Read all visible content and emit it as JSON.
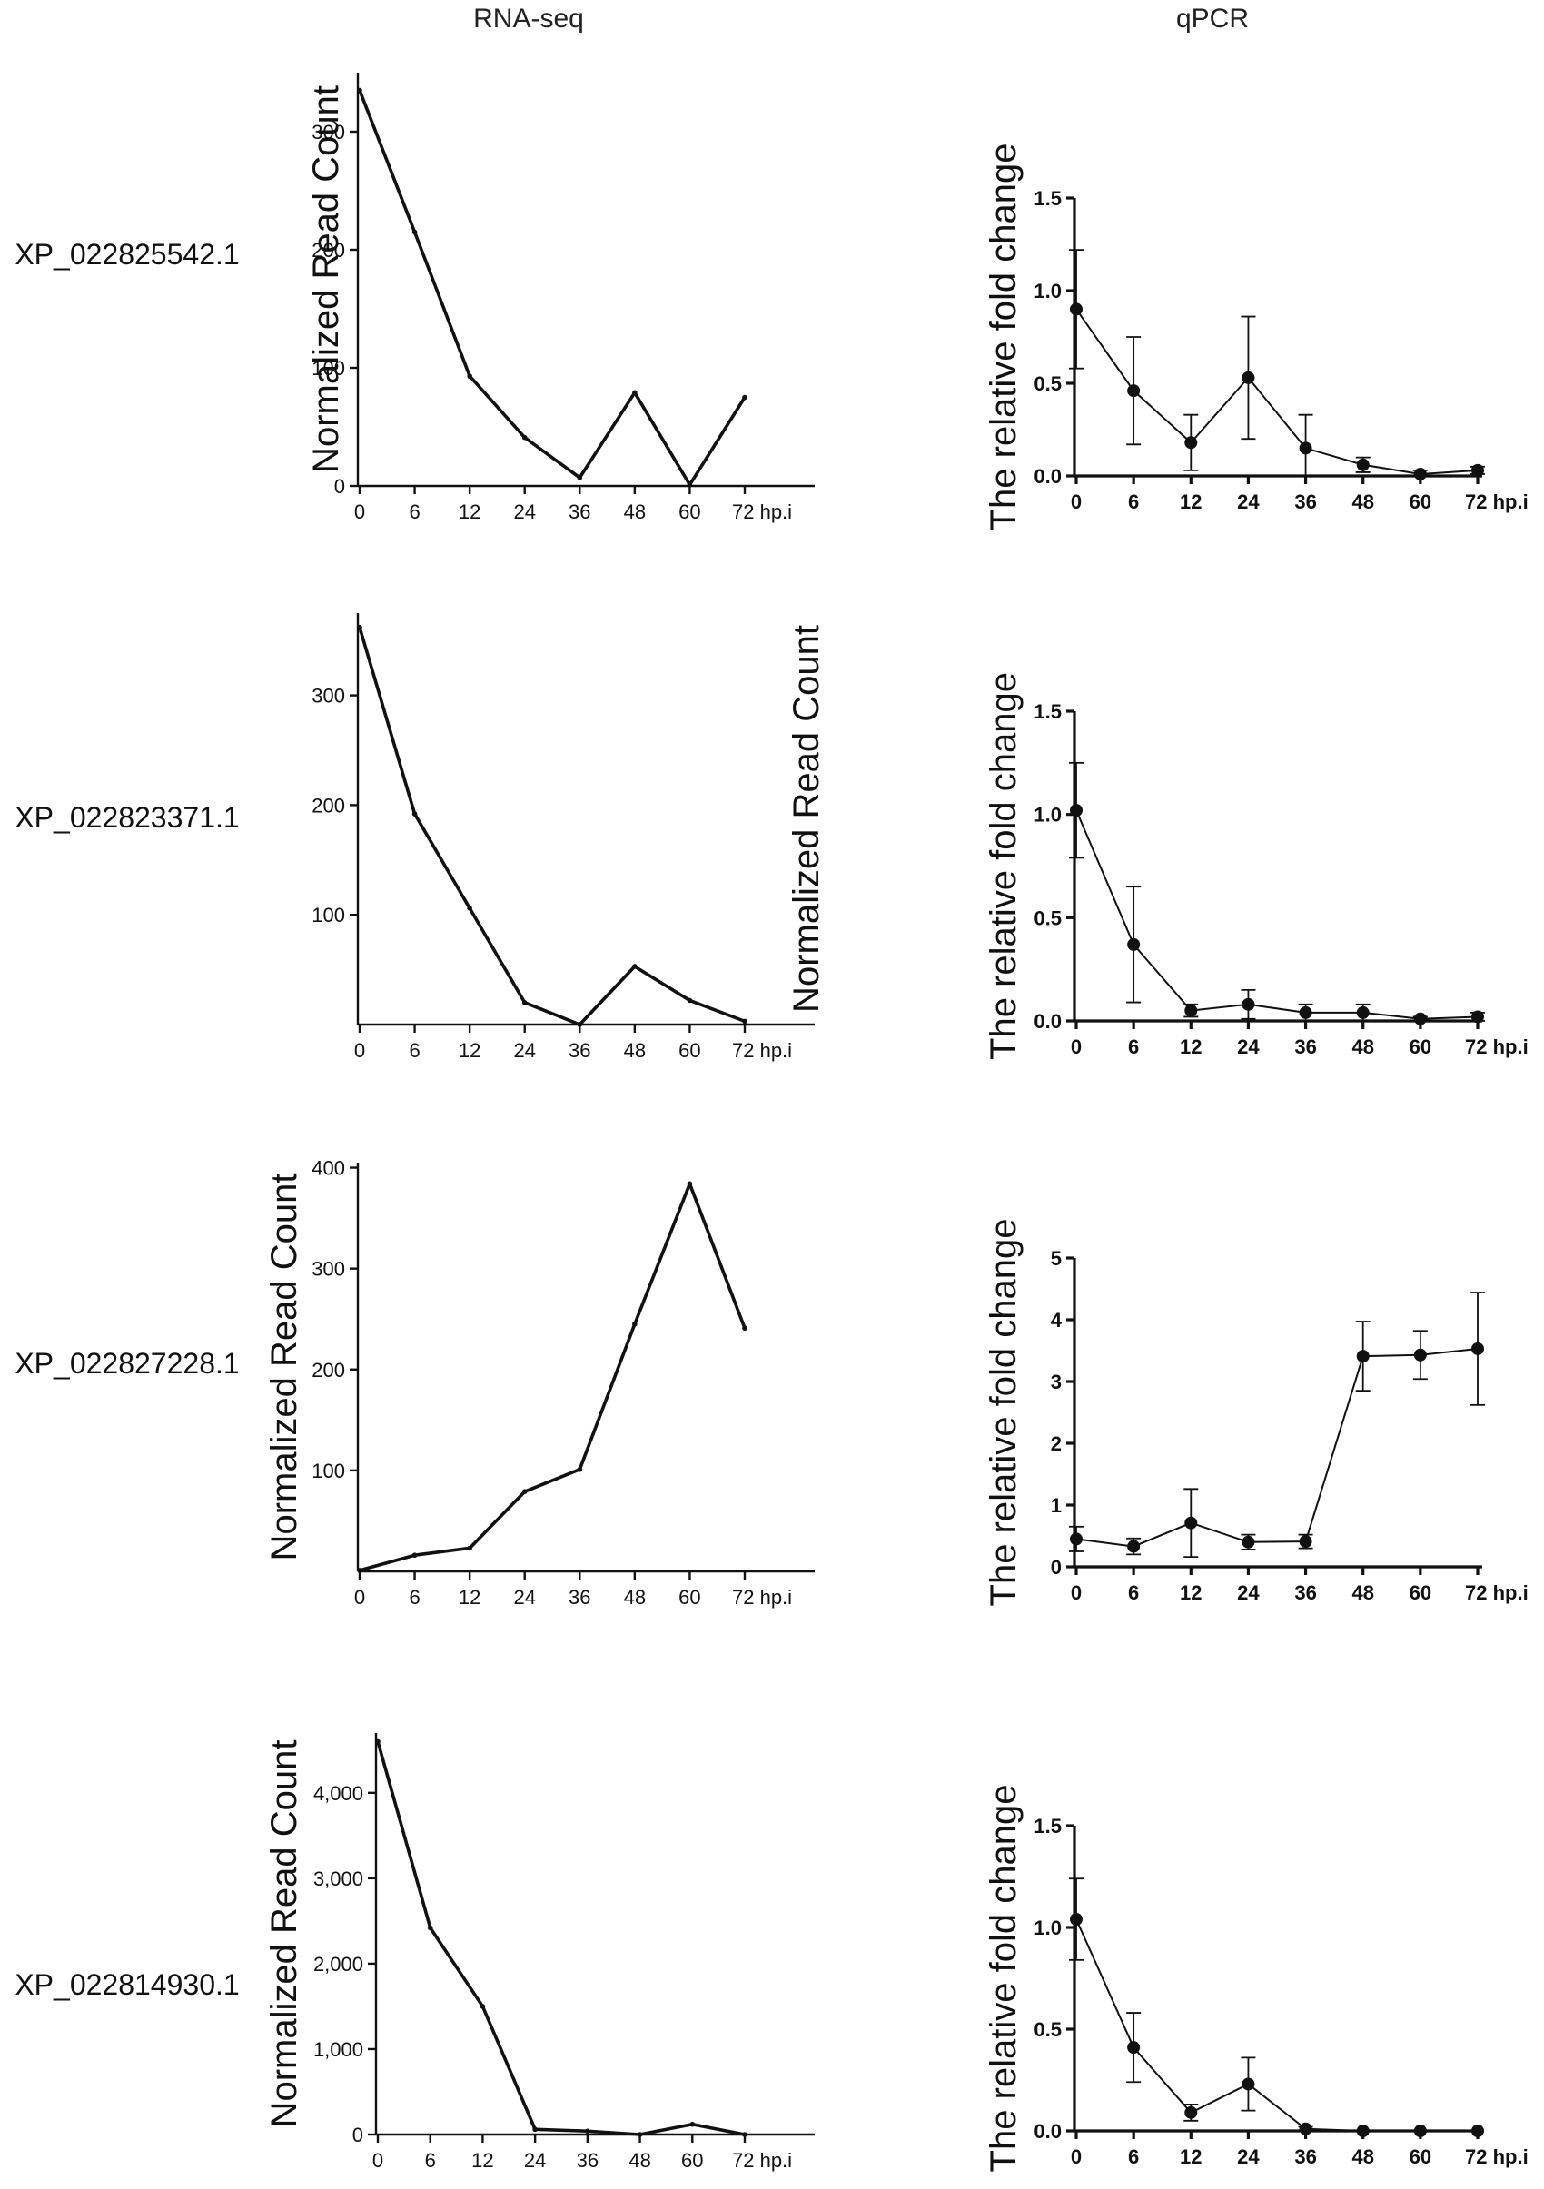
{
  "column_titles": {
    "rnaseq": "RNA-seq",
    "qpcr": "qPCR"
  },
  "genes": [
    "XP_022825542.1",
    "XP_022823371.1",
    "XP_022827228.1",
    "XP_022814930.1"
  ],
  "chart_data": [
    {
      "type": "line",
      "panel": "RNA-seq",
      "gene": "XP_022825542.1",
      "title": "RNA-seq",
      "ylabel": "Normalized Read Count",
      "xlabel": "",
      "categories": [
        "0",
        "6",
        "12",
        "24",
        "36",
        "48",
        "60",
        "72 hp.i"
      ],
      "values": [
        335,
        215,
        93,
        41,
        7,
        79,
        1,
        75
      ],
      "ylim": [
        0,
        350
      ],
      "yticks": [
        0,
        100,
        200,
        300
      ],
      "ytick_labels": [
        "0",
        "100",
        "200",
        "300"
      ],
      "grid": false
    },
    {
      "type": "line",
      "panel": "qPCR",
      "gene": "XP_022825542.1",
      "title": "qPCR",
      "ylabel": "The relative fold change",
      "xlabel": "",
      "categories": [
        "0",
        "6",
        "12",
        "24",
        "36",
        "48",
        "60",
        "72 hp.i"
      ],
      "values": [
        0.9,
        0.46,
        0.18,
        0.53,
        0.15,
        0.06,
        0.01,
        0.03
      ],
      "errors": [
        0.32,
        0.29,
        0.15,
        0.33,
        0.18,
        0.04,
        0.02,
        0.02
      ],
      "ylim": [
        0,
        1.5
      ],
      "yticks": [
        0,
        0.5,
        1.0,
        1.5
      ],
      "ytick_labels": [
        "0.0",
        "0.5",
        "1.0",
        "1.5"
      ],
      "grid": false
    },
    {
      "type": "line",
      "panel": "RNA-seq",
      "gene": "XP_022823371.1",
      "title": "RNA-seq",
      "ylabel": "Normalized Read Count",
      "xlabel": "",
      "categories": [
        "0",
        "6",
        "12",
        "24",
        "36",
        "48",
        "60",
        "72 hp.i"
      ],
      "values": [
        362,
        192,
        106,
        20,
        0,
        53,
        22,
        3
      ],
      "ylim": [
        0,
        375
      ],
      "yticks": [
        100,
        200,
        300
      ],
      "ytick_labels": [
        "100",
        "200",
        "300"
      ],
      "grid": false
    },
    {
      "type": "line",
      "panel": "qPCR",
      "gene": "XP_022823371.1",
      "title": "qPCR",
      "ylabel": "The relative fold change",
      "xlabel": "",
      "categories": [
        "0",
        "6",
        "12",
        "24",
        "36",
        "48",
        "60",
        "72 hp.i"
      ],
      "values": [
        1.02,
        0.37,
        0.05,
        0.08,
        0.04,
        0.04,
        0.01,
        0.02
      ],
      "errors": [
        0.23,
        0.28,
        0.03,
        0.07,
        0.04,
        0.04,
        0.01,
        0.02
      ],
      "ylim": [
        0,
        1.5
      ],
      "yticks": [
        0,
        0.5,
        1.0,
        1.5
      ],
      "ytick_labels": [
        "0.0",
        "0.5",
        "1.0",
        "1.5"
      ],
      "grid": false
    },
    {
      "type": "line",
      "panel": "RNA-seq",
      "gene": "XP_022827228.1",
      "title": "RNA-seq",
      "ylabel": "Normalized Read Count",
      "xlabel": "",
      "categories": [
        "0",
        "6",
        "12",
        "24",
        "36",
        "48",
        "60",
        "72 hp.i"
      ],
      "values": [
        1,
        16,
        23,
        79,
        101,
        245,
        384,
        241
      ],
      "ylim": [
        0,
        405
      ],
      "yticks": [
        100,
        200,
        300,
        400
      ],
      "ytick_labels": [
        "100",
        "200",
        "300",
        "400"
      ],
      "grid": false
    },
    {
      "type": "line",
      "panel": "qPCR",
      "gene": "XP_022827228.1",
      "title": "qPCR",
      "ylabel": "The relative fold change",
      "xlabel": "",
      "categories": [
        "0",
        "6",
        "12",
        "24",
        "36",
        "48",
        "60",
        "72 hp.i"
      ],
      "values": [
        0.45,
        0.33,
        0.71,
        0.4,
        0.41,
        3.41,
        3.43,
        3.53
      ],
      "errors": [
        0.2,
        0.13,
        0.55,
        0.12,
        0.11,
        0.56,
        0.39,
        0.91
      ],
      "ylim": [
        0,
        5
      ],
      "yticks": [
        0,
        1,
        2,
        3,
        4,
        5
      ],
      "ytick_labels": [
        "0",
        "1",
        "2",
        "3",
        "4",
        "5"
      ],
      "grid": false
    },
    {
      "type": "line",
      "panel": "RNA-seq",
      "gene": "XP_022814930.1",
      "title": "RNA-seq",
      "ylabel": "Normalized Read Count",
      "xlabel": "",
      "categories": [
        "0",
        "6",
        "12",
        "24",
        "36",
        "48",
        "60",
        "72 hp.i"
      ],
      "values": [
        4600,
        2420,
        1500,
        60,
        40,
        0,
        120,
        0
      ],
      "ylim": [
        0,
        4700
      ],
      "yticks": [
        0,
        1000,
        2000,
        3000,
        4000
      ],
      "ytick_labels": [
        "0",
        "1,000",
        "2,000",
        "3,000",
        "4,000"
      ],
      "grid": false
    },
    {
      "type": "line",
      "panel": "qPCR",
      "gene": "XP_022814930.1",
      "title": "qPCR",
      "ylabel": "The relative fold change",
      "xlabel": "",
      "categories": [
        "0",
        "6",
        "12",
        "24",
        "36",
        "48",
        "60",
        "72 hp.i"
      ],
      "values": [
        1.04,
        0.41,
        0.09,
        0.23,
        0.01,
        0.0,
        0.0,
        0.0
      ],
      "errors": [
        0.2,
        0.17,
        0.04,
        0.13,
        0.01,
        0.0,
        0.0,
        0.0
      ],
      "ylim": [
        0,
        1.5
      ],
      "yticks": [
        0,
        0.5,
        1.0,
        1.5
      ],
      "ytick_labels": [
        "0.0",
        "0.5",
        "1.0",
        "1.5"
      ],
      "grid": false
    }
  ]
}
